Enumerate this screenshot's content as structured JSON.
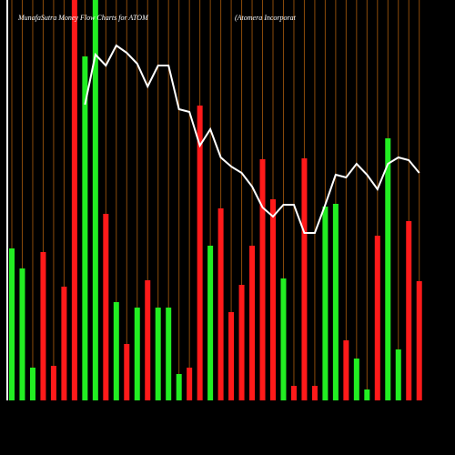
{
  "chart_data": {
    "type": "bar",
    "title": "MunafaSutra  Money Flow  Charts for ATOM",
    "subtitle": "(Atomera  Incorporat",
    "ylim": [
      0,
      440
    ],
    "bar_values": [
      167,
      145,
      36,
      163,
      38,
      125,
      440,
      378,
      440,
      205,
      108,
      62,
      102,
      132,
      102,
      102,
      29,
      36,
      324,
      170,
      211,
      97,
      127,
      170,
      265,
      221,
      134,
      16,
      266,
      16,
      213,
      216,
      66,
      46,
      12,
      181,
      288,
      56,
      197,
      131
    ],
    "bar_colors": [
      "g",
      "g",
      "g",
      "r",
      "r",
      "r",
      "r",
      "g",
      "g",
      "r",
      "g",
      "r",
      "g",
      "r",
      "g",
      "g",
      "g",
      "r",
      "r",
      "g",
      "r",
      "r",
      "r",
      "r",
      "r",
      "r",
      "g",
      "r",
      "r",
      "r",
      "g",
      "g",
      "r",
      "g",
      "g",
      "r",
      "g",
      "g",
      "r",
      "r"
    ],
    "line_values": [
      null,
      null,
      null,
      null,
      null,
      null,
      null,
      325,
      380,
      368,
      390,
      382,
      370,
      345,
      368,
      368,
      320,
      317,
      280,
      298,
      267,
      257,
      250,
      235,
      212,
      202,
      215,
      215,
      184,
      184,
      215,
      248,
      245,
      260,
      248,
      232,
      260,
      267,
      264,
      250
    ],
    "green": "#22ee22",
    "red": "#ff1a1a",
    "grid_color": "#8a4a0a",
    "line_color": "#ffffff"
  }
}
